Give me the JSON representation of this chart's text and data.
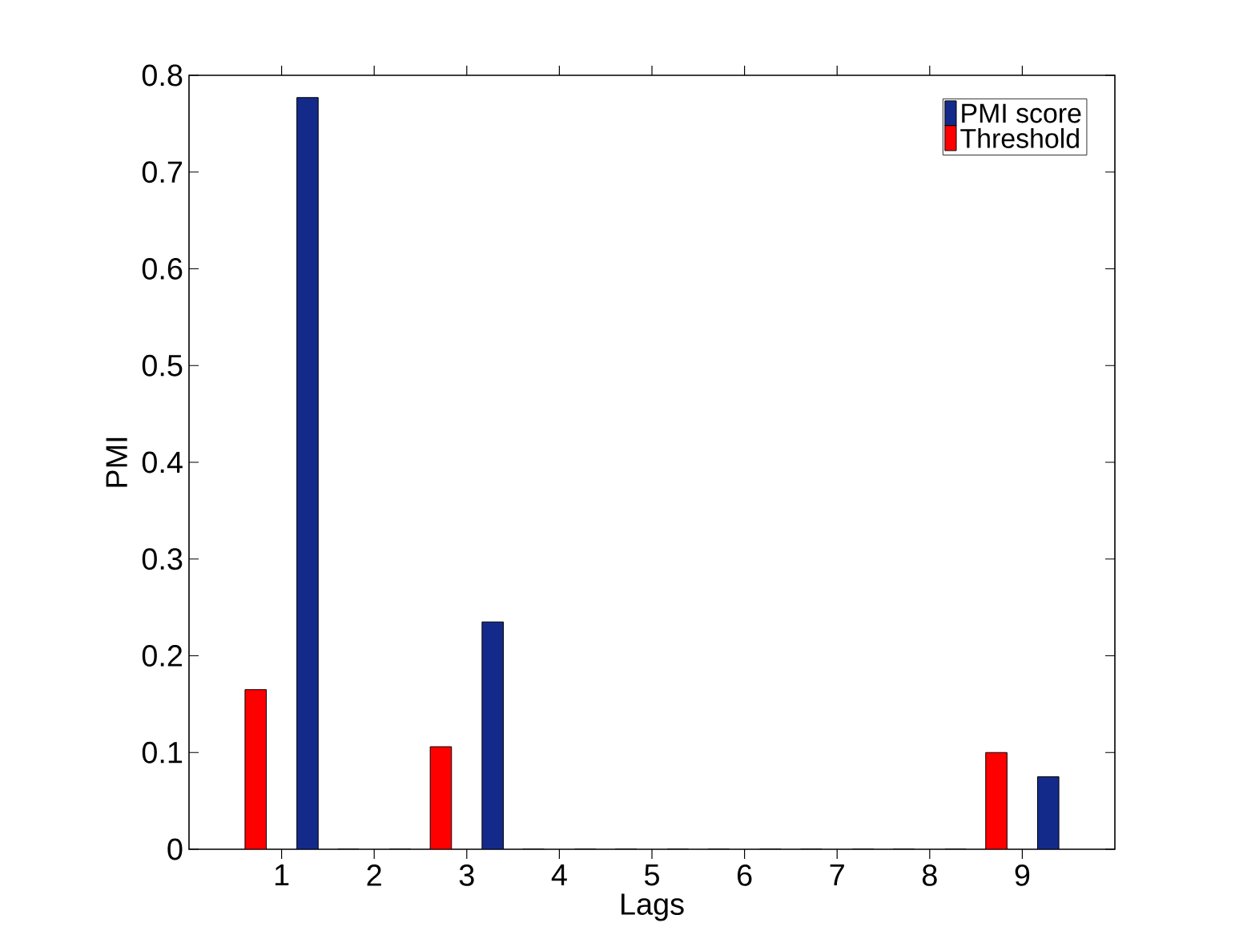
{
  "chart_data": {
    "type": "bar",
    "xlabel": "Lags",
    "ylabel": "PMI",
    "categories": [
      "1",
      "2",
      "3",
      "4",
      "5",
      "6",
      "7",
      "8",
      "9"
    ],
    "series": [
      {
        "name": "PMI score",
        "color": "#142a8a",
        "values": [
          0.777,
          0,
          0.235,
          0,
          0,
          0,
          0,
          0,
          0.075
        ]
      },
      {
        "name": "Threshold",
        "color": "#ff0000",
        "values": [
          0.165,
          0,
          0.106,
          0,
          0,
          0,
          0,
          0,
          0.1
        ]
      }
    ],
    "ylim": [
      0,
      0.8
    ],
    "yticks": [
      0,
      0.1,
      0.2,
      0.3,
      0.4,
      0.5,
      0.6,
      0.7,
      0.8
    ],
    "legend": "top right"
  }
}
